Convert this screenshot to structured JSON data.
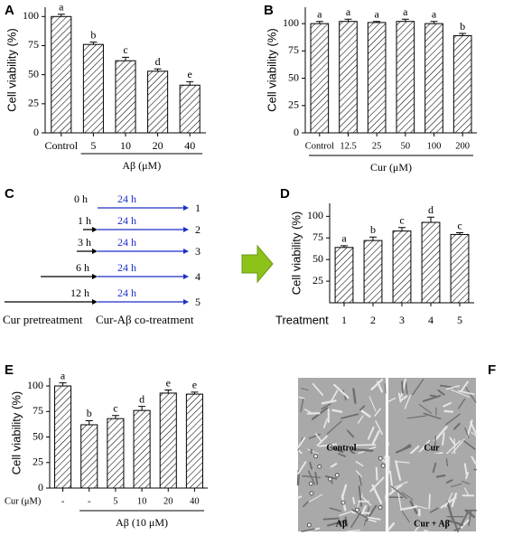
{
  "chart_data": [
    {
      "type": "bar",
      "panel": "A",
      "ylabel": "Cell viability (%)",
      "categories": [
        "Control",
        "5",
        "10",
        "20",
        "40"
      ],
      "group_label": "Aβ (μM)",
      "values": [
        100,
        76,
        62,
        53,
        41
      ],
      "errors": [
        2,
        2,
        3,
        2,
        3
      ],
      "annotations": [
        "a",
        "b",
        "c",
        "d",
        "e"
      ],
      "ylim": [
        0,
        108
      ],
      "yticks": [
        0,
        25,
        50,
        75,
        100
      ]
    },
    {
      "type": "bar",
      "panel": "B",
      "ylabel": "Cell viability (%)",
      "categories": [
        "Control",
        "12.5",
        "25",
        "50",
        "100",
        "200"
      ],
      "group_label": "Cur (μM)",
      "values": [
        100,
        102,
        101,
        102,
        100,
        89
      ],
      "errors": [
        2,
        2,
        1,
        2,
        2,
        2
      ],
      "annotations": [
        "a",
        "a",
        "a",
        "a",
        "a",
        "b"
      ],
      "ylim": [
        0,
        115
      ],
      "yticks": [
        0,
        25,
        50,
        75,
        100
      ]
    },
    {
      "type": "bar",
      "panel": "D",
      "ylabel": "Cell viability (%)",
      "xlabel": "Treatment",
      "categories": [
        "1",
        "2",
        "3",
        "4",
        "5"
      ],
      "values": [
        64,
        72,
        83,
        93,
        79
      ],
      "errors": [
        2,
        4,
        4,
        6,
        2
      ],
      "annotations": [
        "a",
        "b",
        "c",
        "d",
        "c"
      ],
      "ylim": [
        0,
        115
      ],
      "yticks": [
        25,
        50,
        75,
        100
      ]
    },
    {
      "type": "bar",
      "panel": "E",
      "ylabel": "Cell viability (%)",
      "xlabel": "Cur (μM)",
      "categories": [
        "-",
        "-",
        "5",
        "10",
        "20",
        "40"
      ],
      "group_label": "Aβ (10 μM)",
      "values": [
        100,
        62,
        68,
        76,
        93,
        92
      ],
      "errors": [
        3,
        4,
        3,
        4,
        3,
        2
      ],
      "annotations": [
        "a",
        "b",
        "c",
        "d",
        "e",
        "e"
      ],
      "ylim": [
        0,
        108
      ],
      "yticks": [
        0,
        25,
        50,
        75,
        100
      ]
    }
  ],
  "diagram": {
    "panel": "C",
    "times": [
      "0 h",
      "1 h",
      "3 h",
      "6 h",
      "12 h"
    ],
    "durations": [
      "24 h",
      "24 h",
      "24 h",
      "24 h",
      "24 h"
    ],
    "treatments": [
      "1",
      "2",
      "3",
      "4",
      "5"
    ],
    "phases": [
      "Cur pretreatment",
      "Cur-Aβ co-treatment"
    ]
  },
  "images": {
    "panel": "F",
    "labels": [
      "Control",
      "Cur",
      "Aβ",
      "Cur + Aβ"
    ]
  }
}
